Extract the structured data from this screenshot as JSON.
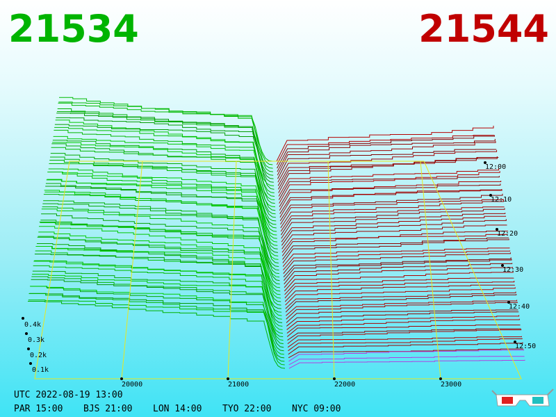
{
  "header": {
    "bid": "21534",
    "ask": "21544"
  },
  "price_axis": {
    "ticks": [
      "20000",
      "21000",
      "22000",
      "23000"
    ]
  },
  "depth_axis": {
    "ticks": [
      "0.1k",
      "0.2k",
      "0.3k",
      "0.4k"
    ]
  },
  "time_axis": {
    "ticks": [
      "12:00",
      "12:10",
      "12:20",
      "12:30",
      "12:40",
      "12:50"
    ]
  },
  "footer": {
    "utc": "UTC 2022-08-19 13:00",
    "zones": [
      "PAR 15:00",
      "BJS 21:00",
      "LON 14:00",
      "TYO 22:00",
      "NYC 09:00"
    ]
  }
}
